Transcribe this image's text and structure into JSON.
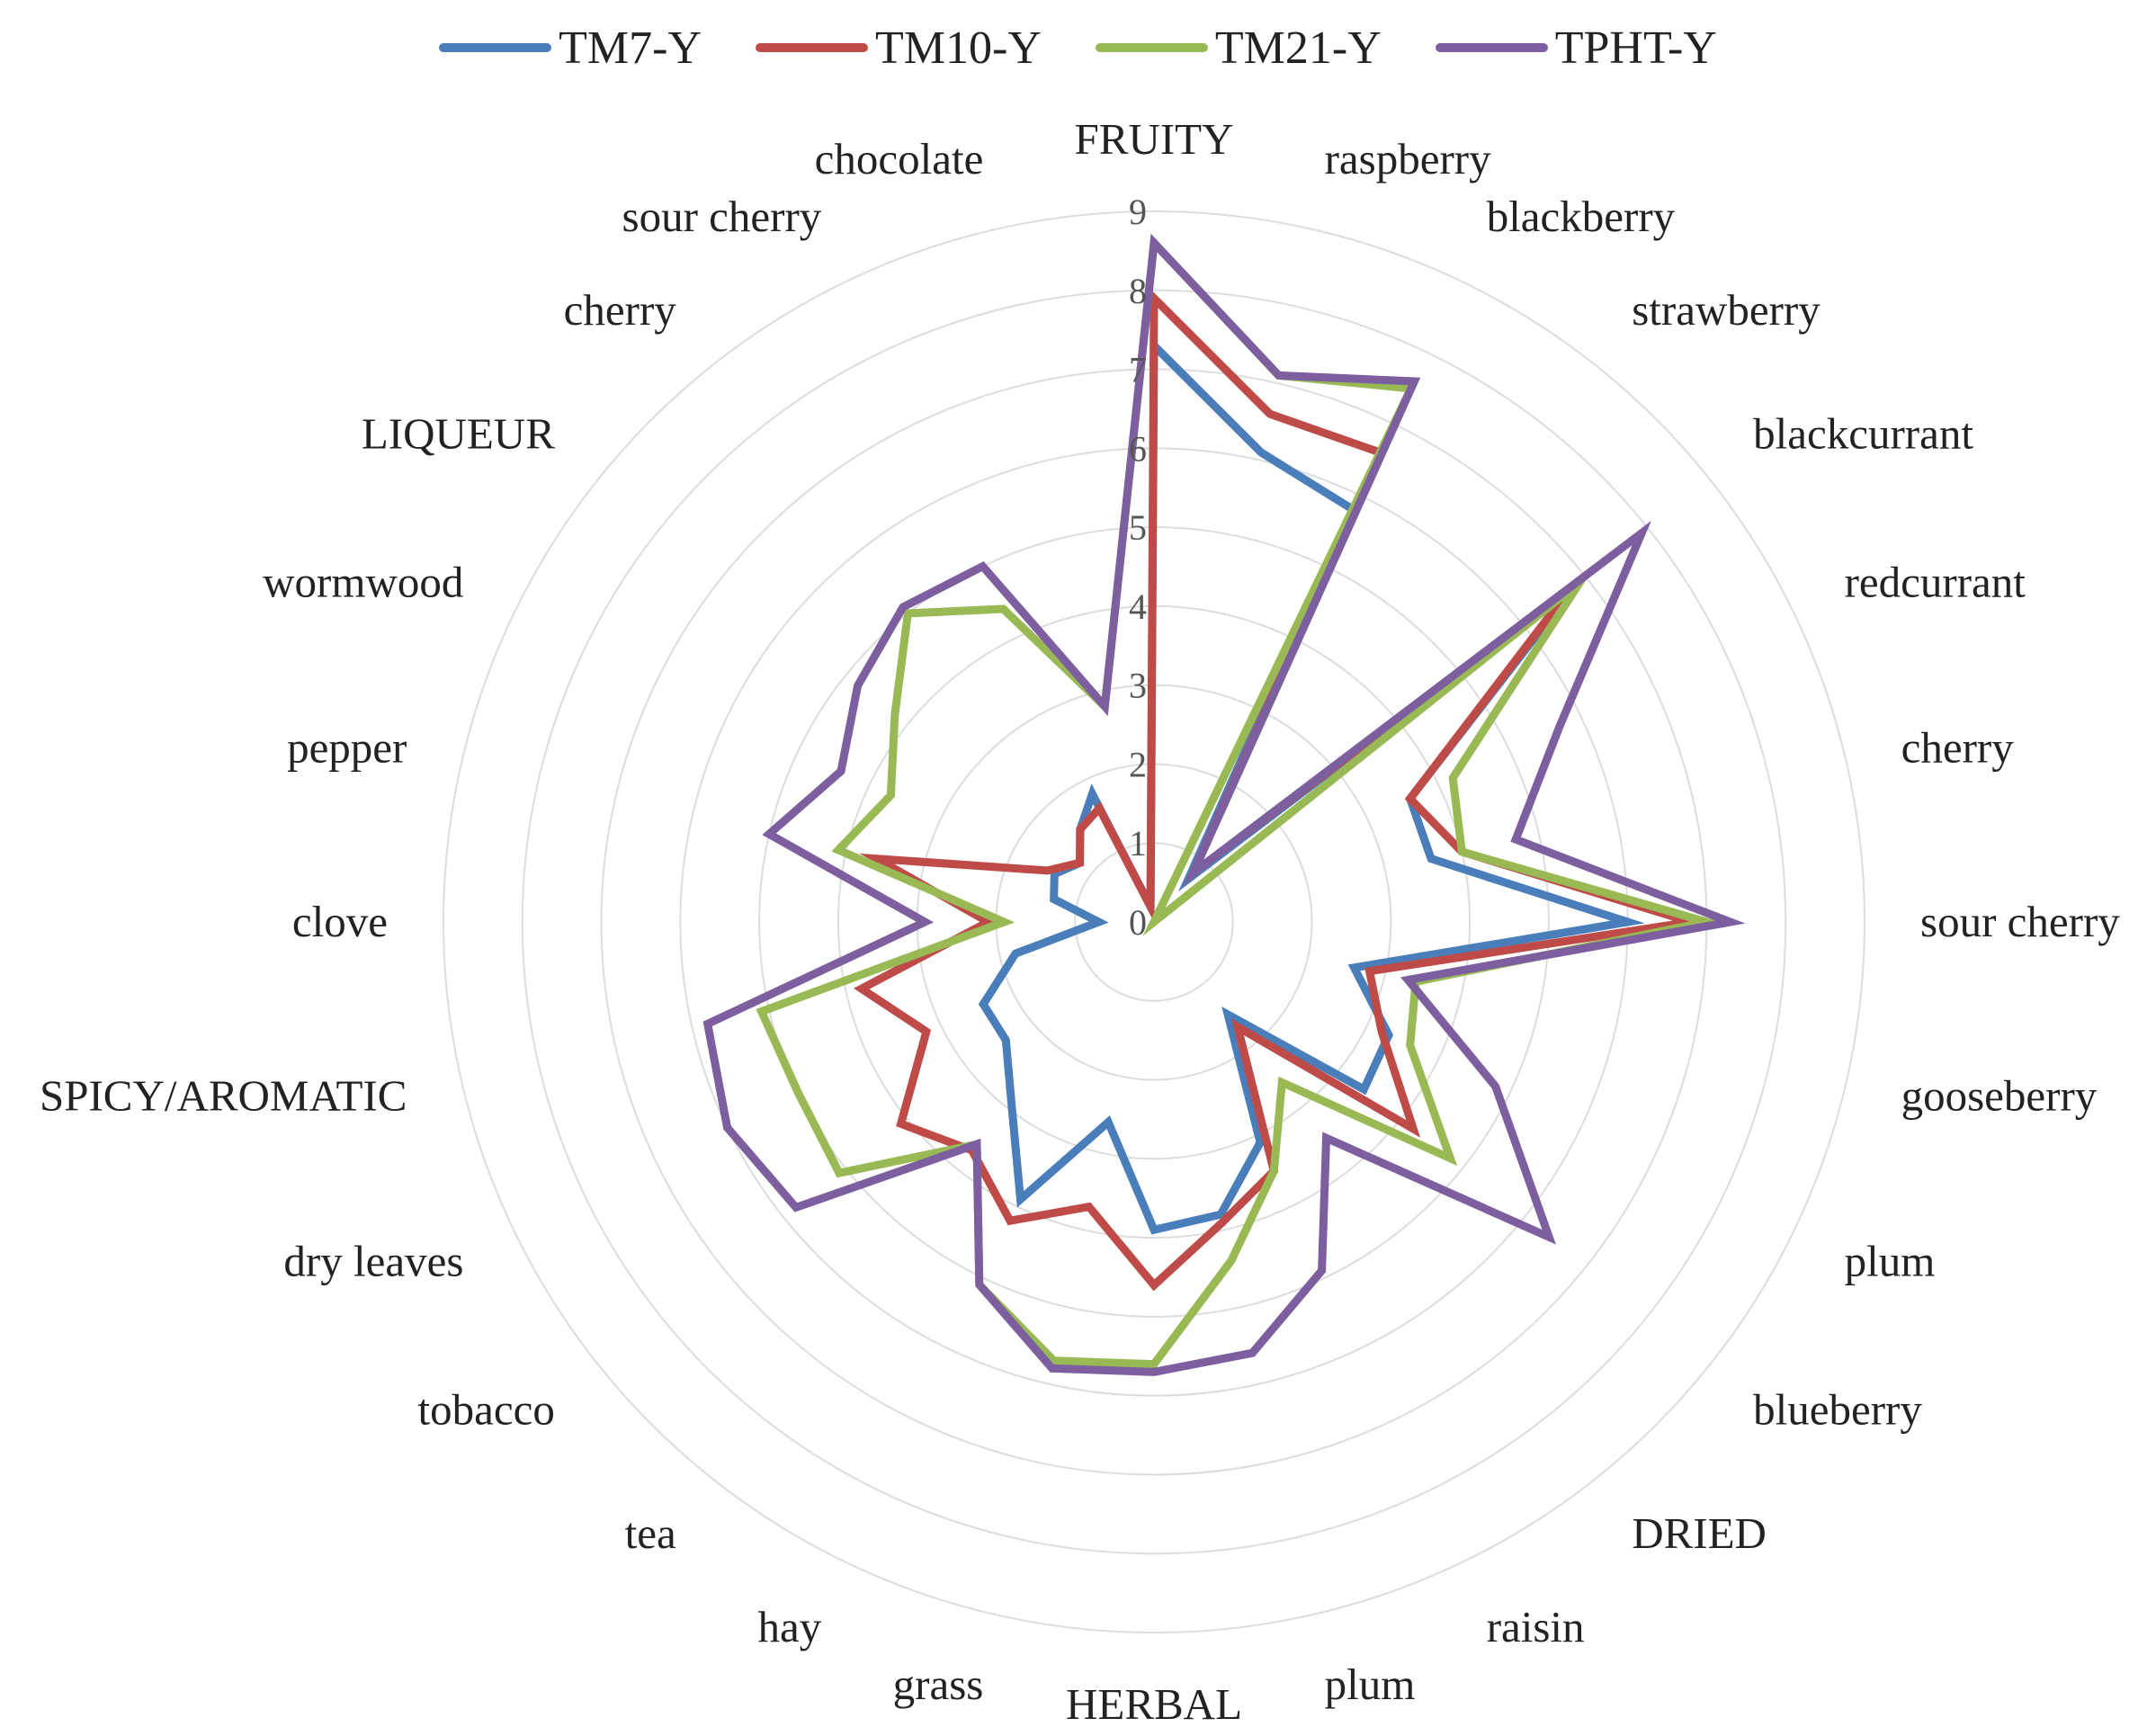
{
  "chart_data": {
    "type": "radar",
    "title": "",
    "rmin": 0,
    "rmax": 9,
    "ticks": [
      "0",
      "1",
      "2",
      "3",
      "4",
      "5",
      "6",
      "7",
      "8",
      "9"
    ],
    "grid": true,
    "legend_position": "top",
    "categories": [
      "FRUITY",
      "raspberry",
      "blackberry",
      "strawberry",
      "blackcurrant",
      "redcurrant",
      "cherry",
      "sour cherry",
      "gooseberry",
      "plum",
      "blueberry",
      "DRIED",
      "raisin",
      "plum",
      "HERBAL",
      "grass",
      "hay",
      "tea",
      "tobacco",
      "dry leaves",
      "SPICY/AROMATIC",
      "clove",
      "pepper",
      "wormwood",
      "LIQUEUR",
      "cherry",
      "sour cherry",
      "chocolate"
    ],
    "series": [
      {
        "name": "TM7-Y",
        "color": "#4a7ebb",
        "values": [
          7.3,
          6.1,
          5.8,
          0.7,
          6.8,
          3.6,
          3.6,
          6.0,
          2.6,
          3.3,
          3.4,
          1.5,
          3.1,
          3.8,
          3.9,
          2.6,
          3.9,
          2.9,
          2.4,
          2.4,
          1.8,
          0.7,
          1.3,
          1.4,
          1.2,
          1.5,
          1.8,
          0.2
        ]
      },
      {
        "name": "TM10-Y",
        "color": "#be4b48",
        "values": [
          7.9,
          6.6,
          6.6,
          0.8,
          6.7,
          3.6,
          4.0,
          6.8,
          2.8,
          3.2,
          4.2,
          1.7,
          3.5,
          3.9,
          4.6,
          3.7,
          4.2,
          3.7,
          4.1,
          3.2,
          3.8,
          2.1,
          3.6,
          1.5,
          1.2,
          1.5,
          1.6,
          0.2
        ]
      },
      {
        "name": "TM21-Y",
        "color": "#98b954",
        "values": [
          8.6,
          7.1,
          7.5,
          0.0,
          6.9,
          4.2,
          4.0,
          7.0,
          3.4,
          3.6,
          4.8,
          2.6,
          3.5,
          4.4,
          5.6,
          5.7,
          5.1,
          3.6,
          5.1,
          5.0,
          5.1,
          1.9,
          4.1,
          3.7,
          4.2,
          5.0,
          4.4,
          2.8
        ]
      },
      {
        "name": "TPHT-Y",
        "color": "#7d5fa0",
        "values": [
          8.6,
          7.1,
          7.6,
          0.8,
          7.9,
          5.7,
          4.7,
          7.3,
          3.3,
          4.8,
          6.4,
          3.5,
          4.9,
          5.6,
          5.7,
          5.8,
          5.1,
          3.6,
          5.8,
          6.0,
          5.8,
          2.9,
          5.0,
          4.4,
          4.8,
          5.1,
          5.0,
          2.8
        ]
      }
    ]
  }
}
